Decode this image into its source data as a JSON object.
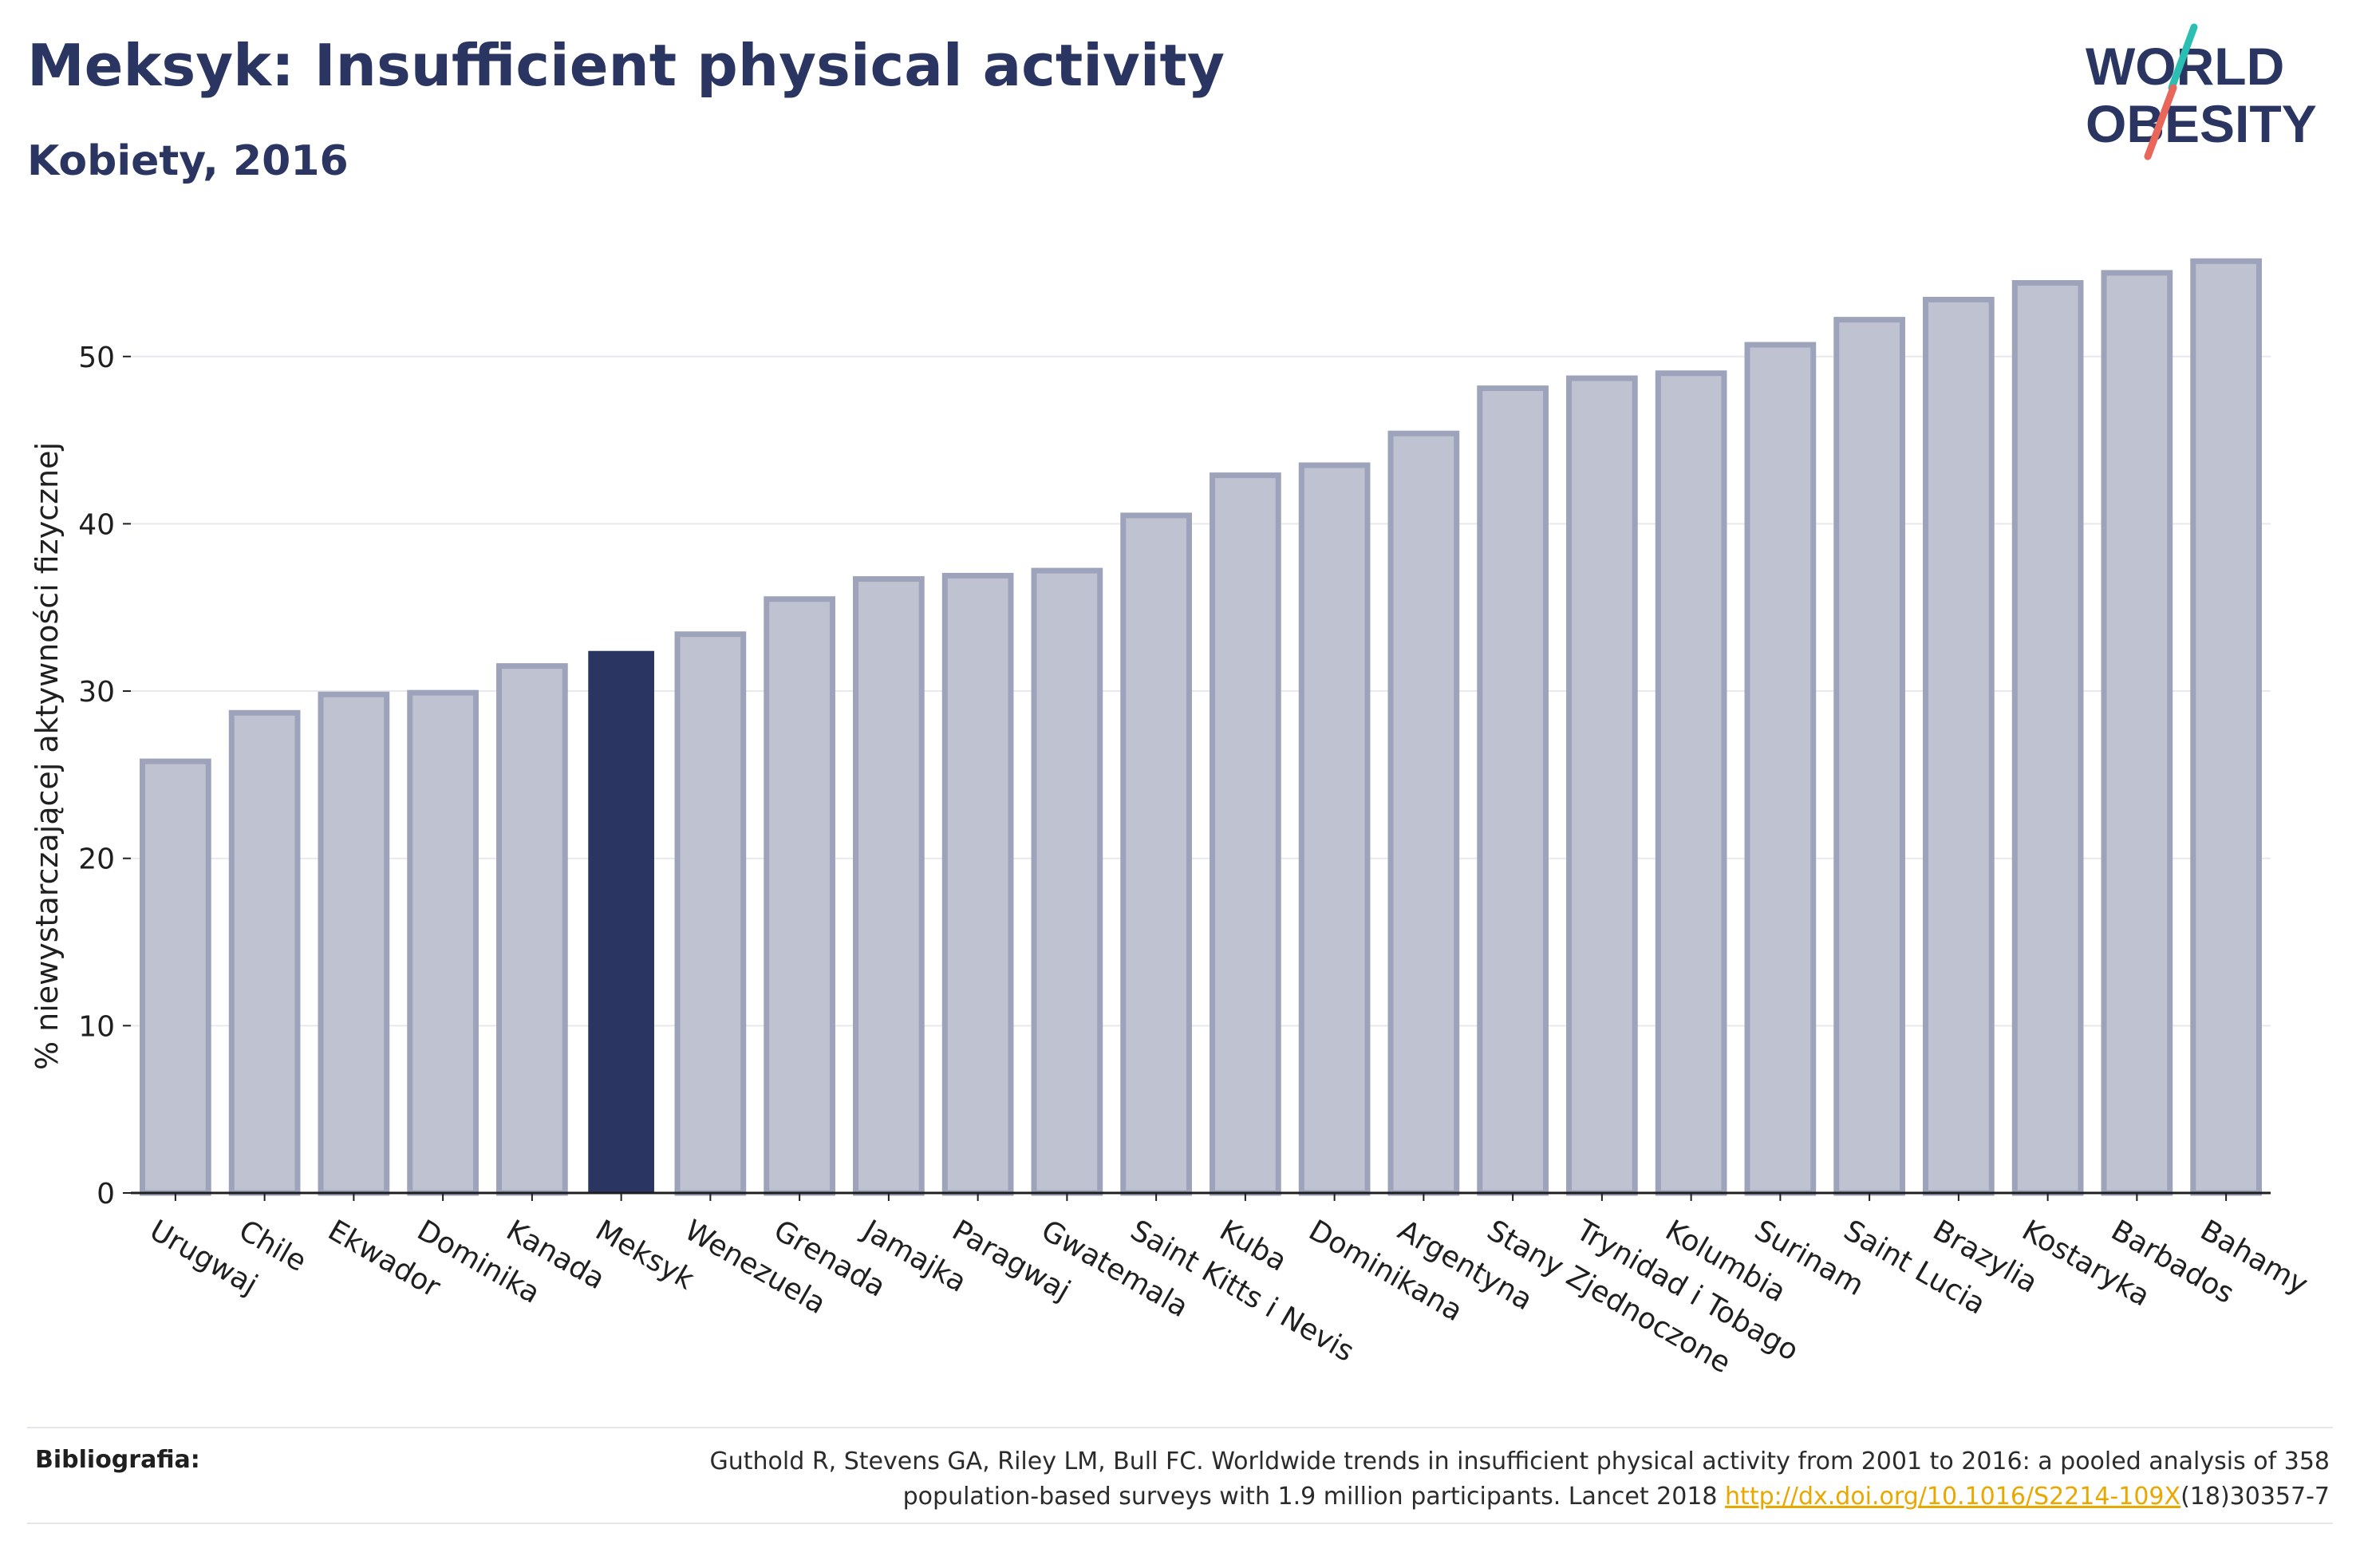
{
  "header": {
    "title": "Meksyk: Insufficient physical activity",
    "subtitle": "Kobiety, 2016"
  },
  "logo": {
    "line1": "WORLD",
    "line2": "OBESITY",
    "colors": {
      "text": "#2a3561",
      "slash_top": "#2bbfb3",
      "slash_bottom": "#e8665a"
    }
  },
  "colors": {
    "bar_fill": "#bfc2d0",
    "bar_stroke": "#9da3ba",
    "highlight": "#2a3561",
    "grid": "#e8e9ee",
    "axis": "#1f1f1f"
  },
  "chart_data": {
    "type": "bar",
    "title": "Meksyk: Insufficient physical activity",
    "subtitle": "Kobiety, 2016",
    "xlabel": "",
    "ylabel": "% niewystarczającej aktywności fizycznej",
    "ylim": [
      0,
      57
    ],
    "yticks": [
      0,
      10,
      20,
      30,
      40,
      50
    ],
    "grid": true,
    "highlight": "Meksyk",
    "categories": [
      "Urugwaj",
      "Chile",
      "Ekwador",
      "Dominika",
      "Kanada",
      "Meksyk",
      "Wenezuela",
      "Grenada",
      "Jamajka",
      "Paragwaj",
      "Gwatemala",
      "Saint Kitts i Nevis",
      "Kuba",
      "Dominikana",
      "Argentyna",
      "Stany Zjednoczone",
      "Trynidad i Tobago",
      "Kolumbia",
      "Surinam",
      "Saint Lucia",
      "Brazylia",
      "Kostaryka",
      "Barbados",
      "Bahamy"
    ],
    "values": [
      25.8,
      28.7,
      29.8,
      29.9,
      31.5,
      32.4,
      33.4,
      35.5,
      36.7,
      36.9,
      37.2,
      40.5,
      42.9,
      43.5,
      45.4,
      48.1,
      48.7,
      49.0,
      50.7,
      52.2,
      53.4,
      54.4,
      55.0,
      55.7
    ]
  },
  "footer": {
    "label": "Bibliografia:",
    "citation_line1": "Guthold R, Stevens GA, Riley LM, Bull FC. Worldwide trends in insufficient physical activity from 2001 to 2016: a pooled analysis of 358",
    "citation_line2_before": "population-based surveys with 1.9 million participants. Lancet 2018 ",
    "citation_link": "http://dx.doi.org/10.1016/S2214-109X",
    "citation_line2_after": "(18)30357-7"
  }
}
